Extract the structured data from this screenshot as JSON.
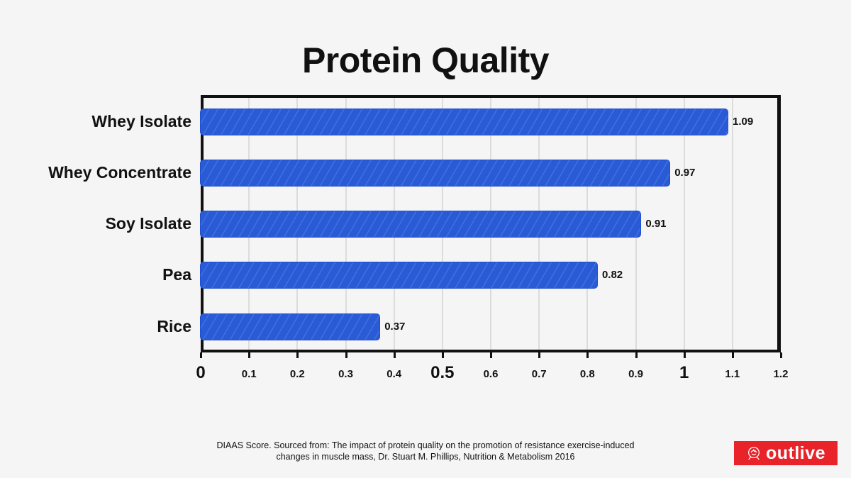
{
  "chart_data": {
    "type": "bar",
    "orientation": "horizontal",
    "title": "Protein Quality",
    "xlabel": "",
    "ylabel": "",
    "categories": [
      "Whey Isolate",
      "Whey Concentrate",
      "Soy Isolate",
      "Pea",
      "Rice"
    ],
    "values": [
      1.09,
      0.97,
      0.91,
      0.82,
      0.37
    ],
    "value_labels": [
      "1.09",
      "0.97",
      "0.91",
      "0.82",
      "0.37"
    ],
    "xlim": [
      0,
      1.2
    ],
    "xticks": [
      "0",
      "0.1",
      "0.2",
      "0.3",
      "0.4",
      "0.5",
      "0.6",
      "0.7",
      "0.8",
      "0.9",
      "1",
      "1.1",
      "1.2"
    ],
    "grid": "vertical",
    "bar_color": "#2a5bd7",
    "legend": null
  },
  "footer": {
    "source_line1": "DIAAS Score. Sourced from: The impact of protein quality on the promotion of resistance exercise-induced",
    "source_line2": "changes in muscle mass, Dr. Stuart M. Phillips, Nutrition & Metabolism 2016"
  },
  "logo": {
    "text": "outlive",
    "icon": "rose-icon",
    "color": "#e8232a"
  }
}
